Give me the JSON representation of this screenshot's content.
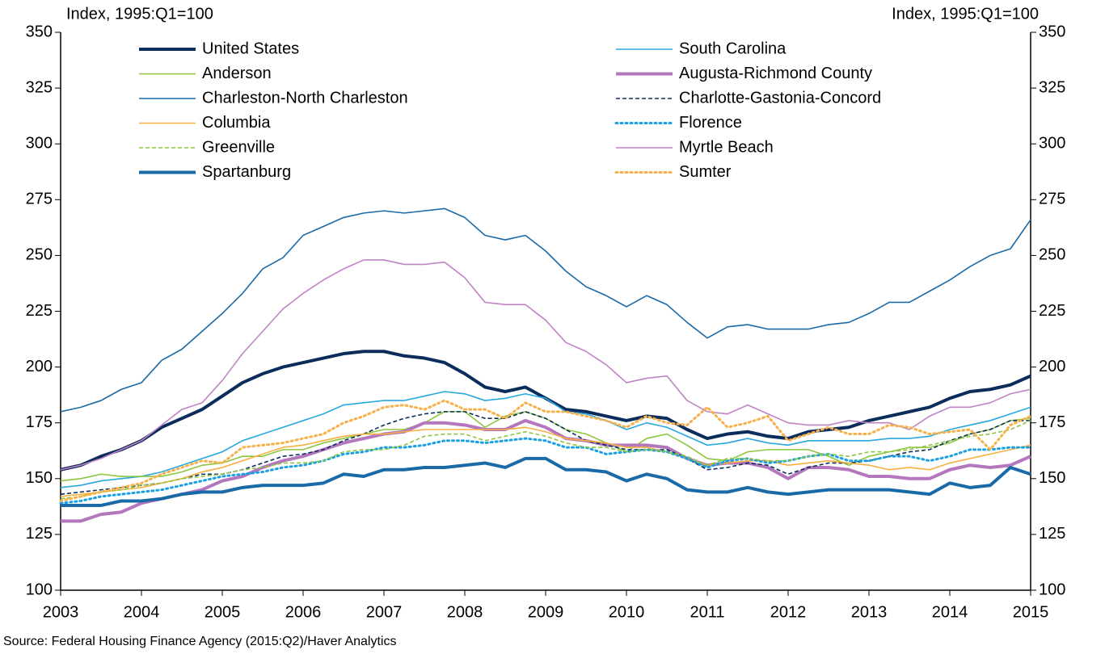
{
  "chart_data": {
    "type": "line",
    "ylabel": "Index, 1995:Q1=100",
    "y2label": "Index, 1995:Q1=100",
    "source": "Source: Federal Housing Finance Agency (2015:Q2)/Haver Analytics",
    "xlim": [
      2003,
      2015
    ],
    "xticks": [
      2003,
      2004,
      2005,
      2006,
      2007,
      2008,
      2009,
      2010,
      2011,
      2012,
      2013,
      2014,
      2015
    ],
    "ylim": [
      100,
      350
    ],
    "yticks": [
      100,
      125,
      150,
      175,
      200,
      225,
      250,
      275,
      300,
      325,
      350
    ],
    "y2lim": [
      100,
      350
    ],
    "y2ticks": [
      100,
      125,
      150,
      175,
      200,
      225,
      250,
      275,
      300,
      325,
      350
    ],
    "x": [
      2003,
      2003.25,
      2003.5,
      2003.75,
      2004,
      2004.25,
      2004.5,
      2004.75,
      2005,
      2005.25,
      2005.5,
      2005.75,
      2006,
      2006.25,
      2006.5,
      2006.75,
      2007,
      2007.25,
      2007.5,
      2007.75,
      2008,
      2008.25,
      2008.5,
      2008.75,
      2009,
      2009.25,
      2009.5,
      2009.75,
      2010,
      2010.25,
      2010.5,
      2010.75,
      2011,
      2011.25,
      2011.5,
      2011.75,
      2012,
      2012.25,
      2012.5,
      2012.75,
      2013,
      2013.25,
      2013.5,
      2013.75,
      2014,
      2014.25,
      2014.5,
      2014.75,
      2015
    ],
    "series": [
      {
        "name": "United States",
        "color": "#0b2d5c",
        "style": "thick",
        "values": [
          154,
          156,
          160,
          163,
          167,
          173,
          177,
          181,
          187,
          193,
          197,
          200,
          202,
          204,
          206,
          207,
          207,
          205,
          204,
          202,
          197,
          191,
          189,
          191,
          186,
          181,
          180,
          178,
          176,
          178,
          177,
          172,
          168,
          170,
          171,
          169,
          168,
          171,
          172,
          173,
          176,
          178,
          180,
          182,
          186,
          189,
          190,
          192,
          196
        ]
      },
      {
        "name": "South Carolina",
        "color": "#29a8e0",
        "style": "solid",
        "values": [
          146,
          147,
          149,
          150,
          151,
          153,
          156,
          159,
          162,
          167,
          170,
          173,
          176,
          179,
          183,
          184,
          185,
          185,
          187,
          189,
          188,
          185,
          186,
          188,
          186,
          180,
          179,
          176,
          172,
          175,
          173,
          169,
          165,
          166,
          168,
          166,
          165,
          167,
          167,
          167,
          167,
          168,
          168,
          169,
          172,
          174,
          176,
          179,
          182
        ]
      },
      {
        "name": "Anderson",
        "color": "#8cc63f",
        "style": "solid",
        "values": [
          149,
          150,
          152,
          151,
          151,
          151,
          153,
          156,
          157,
          160,
          160,
          163,
          163,
          166,
          168,
          170,
          172,
          172,
          175,
          180,
          180,
          173,
          178,
          180,
          177,
          172,
          170,
          166,
          162,
          168,
          170,
          165,
          159,
          158,
          162,
          163,
          163,
          163,
          160,
          156,
          160,
          162,
          164,
          164,
          166,
          170,
          172,
          176,
          177
        ]
      },
      {
        "name": "Augusta-Richmond County",
        "color": "#b476bd",
        "style": "thick",
        "values": [
          131,
          131,
          134,
          135,
          139,
          141,
          143,
          145,
          149,
          151,
          155,
          158,
          160,
          163,
          166,
          168,
          170,
          171,
          175,
          175,
          174,
          172,
          172,
          176,
          173,
          168,
          167,
          165,
          165,
          165,
          164,
          159,
          156,
          157,
          157,
          155,
          150,
          155,
          155,
          154,
          151,
          151,
          150,
          150,
          154,
          156,
          155,
          156,
          160
        ]
      },
      {
        "name": "Charleston-North Charleston",
        "color": "#1a6aa8",
        "style": "solid",
        "values": [
          180,
          182,
          185,
          190,
          193,
          203,
          208,
          216,
          224,
          233,
          244,
          249,
          259,
          263,
          267,
          269,
          270,
          269,
          270,
          271,
          267,
          259,
          257,
          259,
          252,
          243,
          236,
          232,
          227,
          232,
          228,
          220,
          213,
          218,
          219,
          217,
          217,
          217,
          219,
          220,
          224,
          229,
          229,
          234,
          239,
          245,
          250,
          253,
          266
        ]
      },
      {
        "name": "Charlotte-Gastonia-Concord",
        "color": "#0b2d5c",
        "style": "dashed",
        "values": [
          143,
          144,
          145,
          146,
          147,
          148,
          150,
          152,
          152,
          154,
          157,
          160,
          161,
          163,
          167,
          170,
          174,
          177,
          179,
          180,
          180,
          177,
          177,
          180,
          177,
          172,
          167,
          165,
          163,
          163,
          163,
          159,
          154,
          155,
          157,
          156,
          152,
          155,
          157,
          157,
          158,
          160,
          162,
          163,
          167,
          170,
          172,
          176,
          176
        ]
      },
      {
        "name": "Columbia",
        "color": "#f5b041",
        "style": "solid",
        "values": [
          142,
          143,
          144,
          145,
          146,
          148,
          150,
          153,
          155,
          158,
          161,
          164,
          165,
          167,
          169,
          170,
          170,
          171,
          172,
          172,
          172,
          172,
          172,
          173,
          171,
          168,
          167,
          166,
          164,
          164,
          162,
          159,
          156,
          157,
          158,
          158,
          156,
          157,
          158,
          157,
          156,
          154,
          155,
          154,
          157,
          159,
          161,
          163,
          165
        ]
      },
      {
        "name": "Florence",
        "color": "#1ba1e2",
        "style": "dotted",
        "values": [
          139,
          140,
          142,
          143,
          144,
          145,
          147,
          149,
          151,
          152,
          153,
          155,
          156,
          158,
          161,
          162,
          164,
          164,
          165,
          167,
          167,
          166,
          167,
          168,
          167,
          164,
          164,
          161,
          162,
          163,
          162,
          159,
          155,
          158,
          159,
          157,
          158,
          160,
          161,
          158,
          158,
          160,
          160,
          158,
          160,
          163,
          163,
          164,
          164
        ]
      },
      {
        "name": "Greenville",
        "color": "#8cc63f",
        "style": "dashed",
        "values": [
          141,
          142,
          144,
          145,
          147,
          148,
          150,
          151,
          152,
          154,
          155,
          157,
          157,
          158,
          162,
          163,
          163,
          165,
          169,
          170,
          170,
          167,
          169,
          171,
          169,
          166,
          164,
          164,
          162,
          163,
          162,
          160,
          156,
          159,
          159,
          158,
          158,
          160,
          161,
          160,
          162,
          162,
          163,
          165,
          167,
          169,
          170,
          172,
          176
        ]
      },
      {
        "name": "Myrtle Beach",
        "color": "#c084c4",
        "style": "solid",
        "values": [
          154,
          156,
          159,
          163,
          167,
          174,
          181,
          184,
          194,
          206,
          216,
          226,
          233,
          239,
          244,
          248,
          248,
          246,
          246,
          247,
          240,
          229,
          228,
          228,
          221,
          211,
          207,
          201,
          193,
          195,
          196,
          185,
          180,
          179,
          183,
          179,
          175,
          174,
          174,
          176,
          175,
          175,
          172,
          178,
          182,
          182,
          184,
          188,
          190
        ]
      },
      {
        "name": "Spartanburg",
        "color": "#1a6aa8",
        "style": "thick",
        "values": [
          138,
          138,
          138,
          140,
          140,
          141,
          143,
          144,
          144,
          146,
          147,
          147,
          147,
          148,
          152,
          151,
          154,
          154,
          155,
          155,
          156,
          157,
          155,
          159,
          159,
          154,
          154,
          153,
          149,
          152,
          150,
          145,
          144,
          144,
          146,
          144,
          143,
          144,
          145,
          145,
          145,
          145,
          144,
          143,
          148,
          146,
          147,
          155,
          152
        ]
      },
      {
        "name": "Sumter",
        "color": "#f7b04a",
        "style": "dotted",
        "values": [
          140,
          142,
          144,
          146,
          148,
          152,
          155,
          158,
          157,
          164,
          165,
          166,
          168,
          170,
          175,
          178,
          182,
          183,
          181,
          185,
          181,
          181,
          177,
          184,
          180,
          180,
          178,
          176,
          173,
          178,
          175,
          174,
          182,
          173,
          175,
          178,
          167,
          170,
          173,
          170,
          170,
          174,
          173,
          170,
          171,
          172,
          163,
          174,
          178
        ]
      }
    ]
  }
}
